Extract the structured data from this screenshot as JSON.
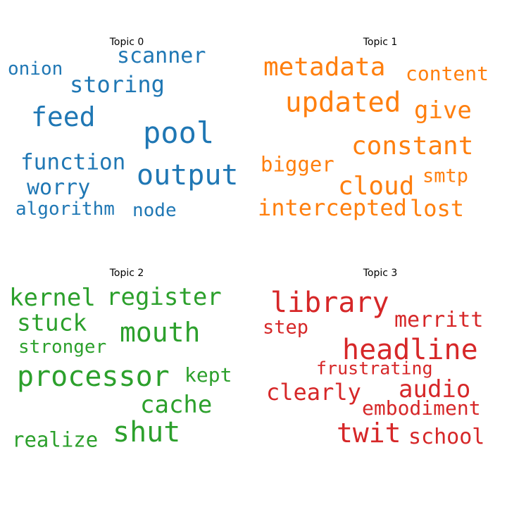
{
  "chart_data": [
    {
      "type": "wordcloud",
      "title": "Topic 0",
      "color": "#1f77b4",
      "words": [
        "pool",
        "output",
        "feed",
        "storing",
        "scanner",
        "function",
        "worry",
        "onion",
        "algorithm",
        "node"
      ]
    },
    {
      "type": "wordcloud",
      "title": "Topic 1",
      "color": "#ff7f0e",
      "words": [
        "updated",
        "metadata",
        "constant",
        "give",
        "cloud",
        "intercepted",
        "content",
        "lost",
        "bigger",
        "smtp"
      ]
    },
    {
      "type": "wordcloud",
      "title": "Topic 2",
      "color": "#2ca02c",
      "words": [
        "processor",
        "mouth",
        "shut",
        "register",
        "kernel",
        "stuck",
        "cache",
        "kept",
        "stronger",
        "realize"
      ]
    },
    {
      "type": "wordcloud",
      "title": "Topic 3",
      "color": "#d62728",
      "words": [
        "headline",
        "library",
        "twit",
        "audio",
        "clearly",
        "merritt",
        "embodiment",
        "school",
        "step",
        "frustrating"
      ]
    }
  ]
}
